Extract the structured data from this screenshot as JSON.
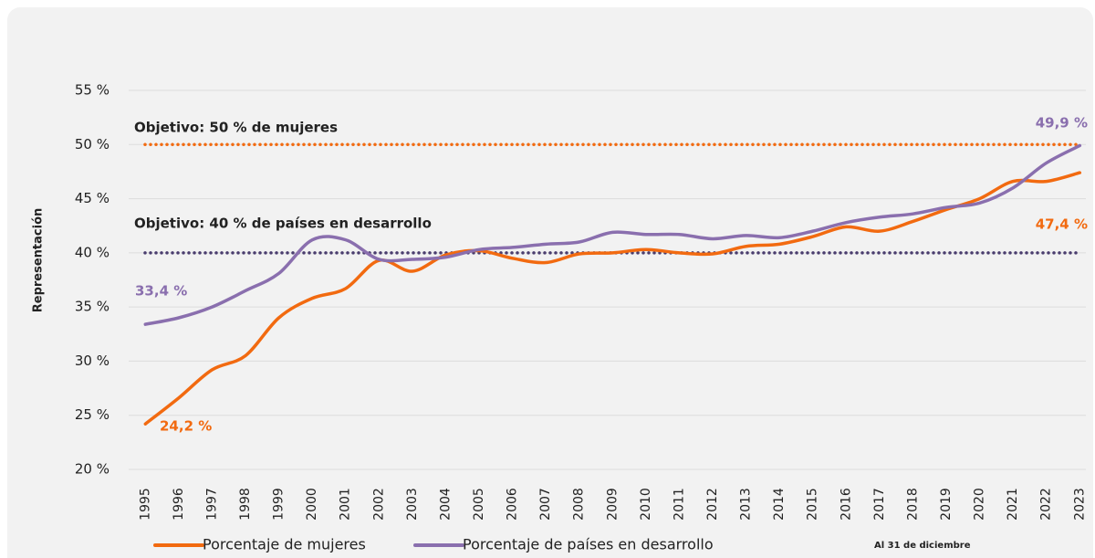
{
  "chart_data": {
    "type": "line",
    "y_label": "Representación",
    "footnote": "Al 31 de diciembre",
    "categories": [
      "1995",
      "1996",
      "1997",
      "1998",
      "1999",
      "2000",
      "2001",
      "2002",
      "2003",
      "2004",
      "2005",
      "2006",
      "2007",
      "2008",
      "2009",
      "2010",
      "2011",
      "2012",
      "2013",
      "2014",
      "2015",
      "2016",
      "2017",
      "2018",
      "2019",
      "2020",
      "2021",
      "2022",
      "2023"
    ],
    "series": [
      {
        "name": "Porcentaje de mujeres",
        "color": "#f26a10",
        "values": [
          24.2,
          26.6,
          29.2,
          30.5,
          34.0,
          35.8,
          36.7,
          39.3,
          38.3,
          39.8,
          40.2,
          39.5,
          39.1,
          39.9,
          40.0,
          40.3,
          40.0,
          39.9,
          40.6,
          40.8,
          41.5,
          42.4,
          42.0,
          42.9,
          44.0,
          45.0,
          46.6,
          46.6,
          47.4
        ],
        "value_labels": [
          "24,2 %",
          null,
          null,
          null,
          null,
          null,
          null,
          null,
          null,
          null,
          null,
          null,
          null,
          null,
          null,
          null,
          null,
          null,
          null,
          null,
          null,
          null,
          null,
          null,
          null,
          null,
          null,
          null,
          "47,4 %"
        ]
      },
      {
        "name": "Porcentaje de países en desarrollo",
        "color": "#8a6fae",
        "values": [
          33.4,
          34.0,
          35.0,
          36.5,
          38.1,
          41.2,
          41.2,
          39.4,
          39.4,
          39.6,
          40.3,
          40.5,
          40.8,
          41.0,
          41.9,
          41.7,
          41.7,
          41.3,
          41.6,
          41.4,
          42.0,
          42.8,
          43.3,
          43.6,
          44.2,
          44.6,
          46.0,
          48.3,
          49.9
        ],
        "value_labels": [
          "33,4 %",
          null,
          null,
          null,
          null,
          null,
          null,
          null,
          null,
          null,
          null,
          null,
          null,
          null,
          null,
          null,
          null,
          null,
          null,
          null,
          null,
          null,
          null,
          null,
          null,
          null,
          null,
          null,
          "49,9 %"
        ]
      }
    ],
    "reference_lines": [
      {
        "value": 50,
        "label": "Objetivo: 50 % de mujeres",
        "color": "#f26a10"
      },
      {
        "value": 40,
        "label": "Objetivo: 40 % de países en desarrollo",
        "color": "#4a3d6e"
      }
    ],
    "ylim": [
      20,
      55
    ],
    "yticks": [
      {
        "value": 20,
        "label": "20 %"
      },
      {
        "value": 25,
        "label": "25 %"
      },
      {
        "value": 30,
        "label": "30 %"
      },
      {
        "value": 35,
        "label": "35 %"
      },
      {
        "value": 40,
        "label": "40 %"
      },
      {
        "value": 45,
        "label": "45 %"
      },
      {
        "value": 50,
        "label": "50 %"
      },
      {
        "value": 55,
        "label": "55 %"
      }
    ],
    "grid": true
  }
}
